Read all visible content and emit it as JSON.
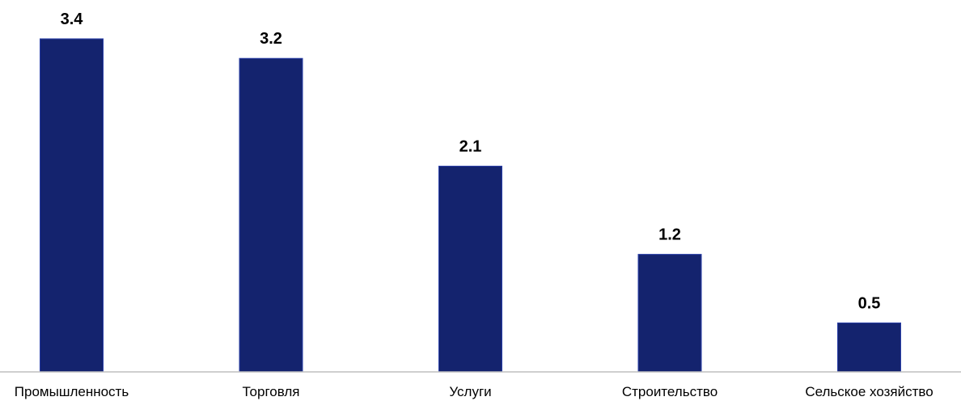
{
  "chart_data": {
    "type": "bar",
    "categories": [
      "Промышленность",
      "Торговля",
      "Услуги",
      "Строительство",
      "Сельское хозяйство"
    ],
    "values": [
      3.4,
      3.2,
      2.1,
      1.2,
      0.5
    ],
    "data_labels": [
      "3.4",
      "3.2",
      "2.1",
      "1.2",
      "0.5"
    ],
    "ylim": [
      0,
      3.4
    ],
    "grid": false,
    "legend": "none",
    "bar_color": "#14236e",
    "bar_edge_color": "#2a3fa8",
    "axis_color": "#bfbfbf"
  }
}
